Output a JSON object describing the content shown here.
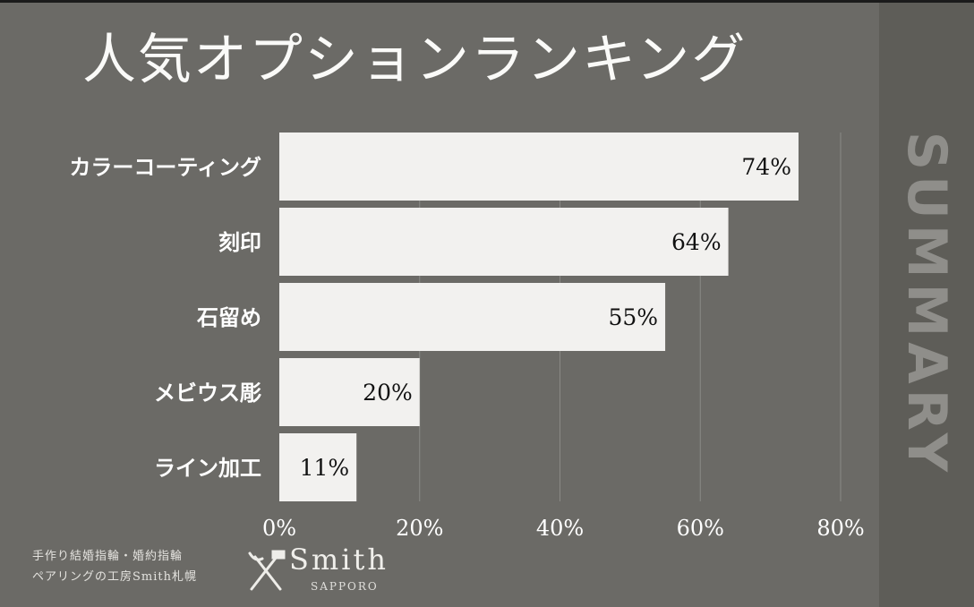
{
  "title": "人気オプションランキング",
  "side_label": "SUMMARY",
  "colors": {
    "background": "#6b6a66",
    "side_panel": "#5e5d58",
    "bar": "#f2f1ef",
    "text": "#ffffff"
  },
  "chart_data": {
    "type": "bar",
    "orientation": "horizontal",
    "categories": [
      "カラーコーティング",
      "刻印",
      "石留め",
      "メビウス彫",
      "ライン加工"
    ],
    "values": [
      74,
      64,
      55,
      20,
      11
    ],
    "data_labels": [
      "74%",
      "64%",
      "55%",
      "20%",
      "11%"
    ],
    "xlim": [
      0,
      80
    ],
    "xticks": [
      0,
      20,
      40,
      60,
      80
    ],
    "xtick_labels": [
      "0%",
      "20%",
      "40%",
      "60%",
      "80%"
    ],
    "grid": "vertical"
  },
  "footer": {
    "line1": "手作り結婚指輪・婚約指輪",
    "line2": "ペアリングの工房Smith札幌",
    "logo_name": "Smith",
    "logo_sub": "SAPPORO",
    "logo_icon": "pliers-hammer-icon"
  }
}
